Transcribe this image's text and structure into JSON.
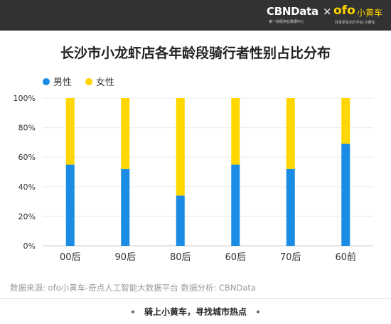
{
  "header": {
    "brand_left": "CBNData",
    "brand_left_sub": "第一财经商业数据中心",
    "brand_separator": "×",
    "brand_right": "ofo",
    "brand_right_cn": "小黄车",
    "brand_right_sub": "共享单车出行平台·小黄车"
  },
  "footer": {
    "source": "数据来源: ofo小黄车-奇点人工智能大数据平台     数据分析: CBNData",
    "slogan": "骑上小黄车，寻找城市热点"
  },
  "colors": {
    "male": "#1a8ce3",
    "female": "#ffd600",
    "header_bg": "#323232",
    "brand_yellow": "#ffd200"
  },
  "chart_data": {
    "type": "bar",
    "stacked": true,
    "title": "长沙市小龙虾店各年龄段骑行者性别占比分布",
    "xlabel": "",
    "ylabel": "",
    "ylim": [
      0,
      100
    ],
    "y_ticks": [
      "0%",
      "20%",
      "40%",
      "60%",
      "80%",
      "100%"
    ],
    "grid": true,
    "legend_position": "top-left",
    "categories": [
      "00后",
      "90后",
      "80后",
      "60后",
      "70后",
      "60前"
    ],
    "series": [
      {
        "name": "男性",
        "color": "#1a8ce3",
        "values": [
          55,
          52,
          34,
          55,
          52,
          69
        ]
      },
      {
        "name": "女性",
        "color": "#ffd600",
        "values": [
          45,
          48,
          66,
          45,
          48,
          31
        ]
      }
    ]
  }
}
